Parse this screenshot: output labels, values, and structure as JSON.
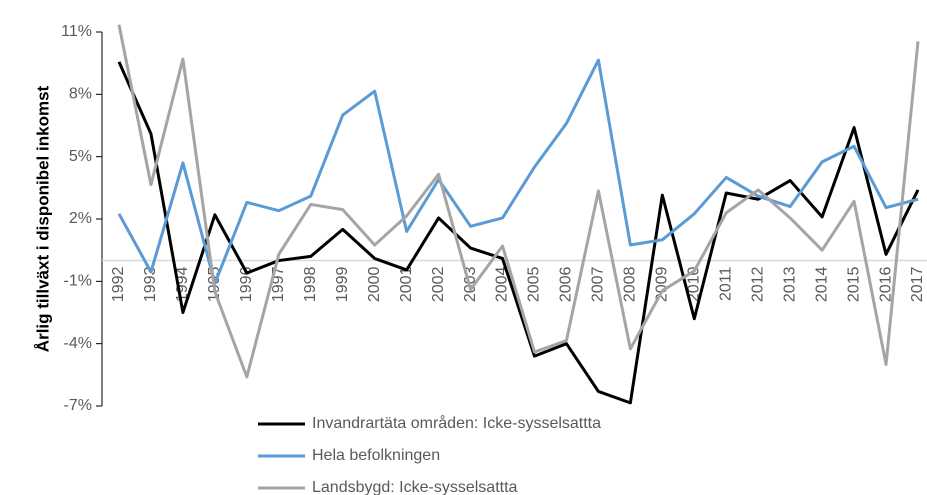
{
  "chart_data": {
    "type": "line",
    "y_label": "Årlig tillväxt i disponibel inkomst",
    "categories": [
      "1992",
      "1993",
      "1994",
      "1995",
      "1996",
      "1997",
      "1998",
      "1999",
      "2000",
      "2001",
      "2002",
      "2003",
      "2004",
      "2005",
      "2006",
      "2007",
      "2008",
      "2009",
      "2010",
      "2011",
      "2012",
      "2013",
      "2014",
      "2015",
      "2016",
      "2017"
    ],
    "series": [
      {
        "name": "Invandrartäta områden: Icke-sysselsattta",
        "color": "#000000",
        "values": [
          9.56,
          6.1,
          -2.5,
          2.2,
          -0.6,
          0.0,
          0.2,
          1.5,
          0.1,
          -0.45,
          2.05,
          0.6,
          0.1,
          -4.6,
          -4.0,
          -6.3,
          -6.85,
          3.15,
          -2.8,
          3.25,
          2.95,
          3.85,
          2.1,
          6.4,
          0.3,
          3.4
        ]
      },
      {
        "name": "Hela befolkningen",
        "color": "#5b9bd5",
        "values": [
          2.25,
          -0.55,
          4.7,
          -1.1,
          2.8,
          2.4,
          3.1,
          7.0,
          8.15,
          1.4,
          3.9,
          1.65,
          2.05,
          4.5,
          6.6,
          9.65,
          0.75,
          1.0,
          2.25,
          4.0,
          3.1,
          2.6,
          4.75,
          5.5,
          2.55,
          2.95
        ]
      },
      {
        "name": "Landsbygd: Icke-sysselsattta",
        "color": "#a5a5a5",
        "values": [
          11.35,
          3.65,
          9.7,
          -1.5,
          -5.6,
          0.3,
          2.7,
          2.45,
          0.75,
          2.15,
          4.15,
          -1.4,
          0.7,
          -4.4,
          -3.85,
          3.35,
          -4.25,
          -1.45,
          -0.5,
          2.3,
          3.4,
          2.05,
          0.5,
          2.85,
          -5.0,
          10.55
        ]
      }
    ],
    "ylim": [
      -7,
      11
    ],
    "yticks": [
      {
        "value": -7,
        "label": "-7%"
      },
      {
        "value": -4,
        "label": "-4%"
      },
      {
        "value": -1,
        "label": "-1%"
      },
      {
        "value": 2,
        "label": "2%"
      },
      {
        "value": 5,
        "label": "5%"
      },
      {
        "value": 8,
        "label": "8%"
      },
      {
        "value": 11,
        "label": "11%"
      }
    ]
  }
}
